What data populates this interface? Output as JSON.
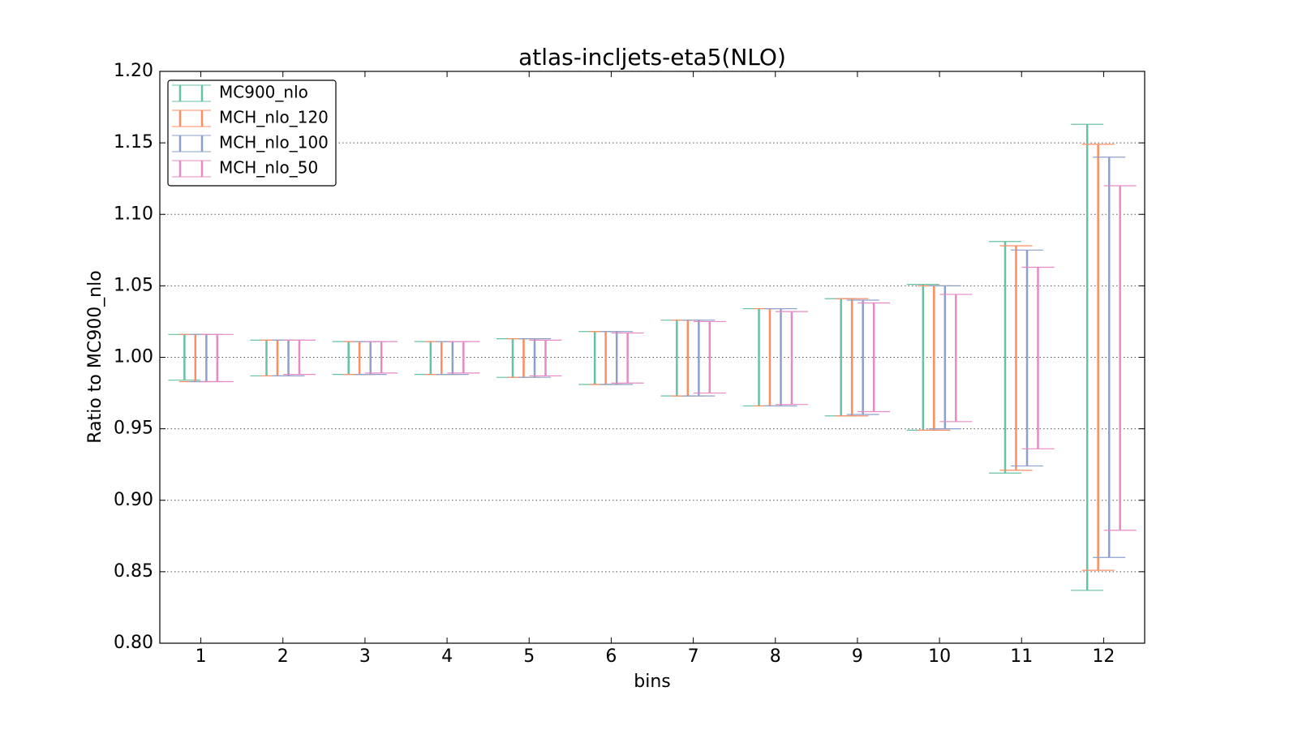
{
  "chart_data": {
    "type": "errorbar",
    "title": "atlas-incljets-eta5(NLO)",
    "x_label": "bins",
    "y_label": "Ratio to MC900_nlo",
    "categories": [
      "1",
      "2",
      "3",
      "4",
      "5",
      "6",
      "7",
      "8",
      "9",
      "10",
      "11",
      "12"
    ],
    "xlim": [
      0.5,
      12.5
    ],
    "ylim": [
      0.8,
      1.2
    ],
    "yticks": [
      {
        "value": 0.8,
        "label": "0.80"
      },
      {
        "value": 0.85,
        "label": "0.85"
      },
      {
        "value": 0.9,
        "label": "0.90"
      },
      {
        "value": 0.95,
        "label": "0.95"
      },
      {
        "value": 1.0,
        "label": "1.00"
      },
      {
        "value": 1.05,
        "label": "1.05"
      },
      {
        "value": 1.1,
        "label": "1.10"
      },
      {
        "value": 1.15,
        "label": "1.15"
      },
      {
        "value": 1.2,
        "label": "1.20"
      }
    ],
    "grid": true,
    "legend": "upper left",
    "series": [
      {
        "name": "MC900_nlo",
        "color": "#66c2a5",
        "high": [
          1.016,
          1.012,
          1.011,
          1.011,
          1.013,
          1.018,
          1.026,
          1.034,
          1.041,
          1.051,
          1.081,
          1.163
        ],
        "low": [
          0.984,
          0.987,
          0.988,
          0.988,
          0.986,
          0.981,
          0.973,
          0.966,
          0.959,
          0.949,
          0.919,
          0.837
        ]
      },
      {
        "name": "MCH_nlo_120",
        "color": "#fc8d62",
        "high": [
          1.016,
          1.012,
          1.011,
          1.011,
          1.013,
          1.018,
          1.026,
          1.034,
          1.041,
          1.05,
          1.078,
          1.149
        ],
        "low": [
          0.983,
          0.987,
          0.988,
          0.988,
          0.986,
          0.981,
          0.973,
          0.966,
          0.959,
          0.949,
          0.921,
          0.851
        ]
      },
      {
        "name": "MCH_nlo_100",
        "color": "#8da0cb",
        "high": [
          1.016,
          1.012,
          1.011,
          1.011,
          1.013,
          1.018,
          1.026,
          1.034,
          1.04,
          1.05,
          1.075,
          1.14
        ],
        "low": [
          0.983,
          0.987,
          0.988,
          0.988,
          0.986,
          0.981,
          0.973,
          0.966,
          0.96,
          0.95,
          0.924,
          0.86
        ]
      },
      {
        "name": "MCH_nlo_50",
        "color": "#e78ac3",
        "high": [
          1.016,
          1.012,
          1.011,
          1.011,
          1.012,
          1.017,
          1.025,
          1.032,
          1.038,
          1.044,
          1.063,
          1.12
        ],
        "low": [
          0.983,
          0.988,
          0.989,
          0.989,
          0.987,
          0.982,
          0.975,
          0.967,
          0.962,
          0.955,
          0.936,
          0.879
        ]
      }
    ]
  }
}
